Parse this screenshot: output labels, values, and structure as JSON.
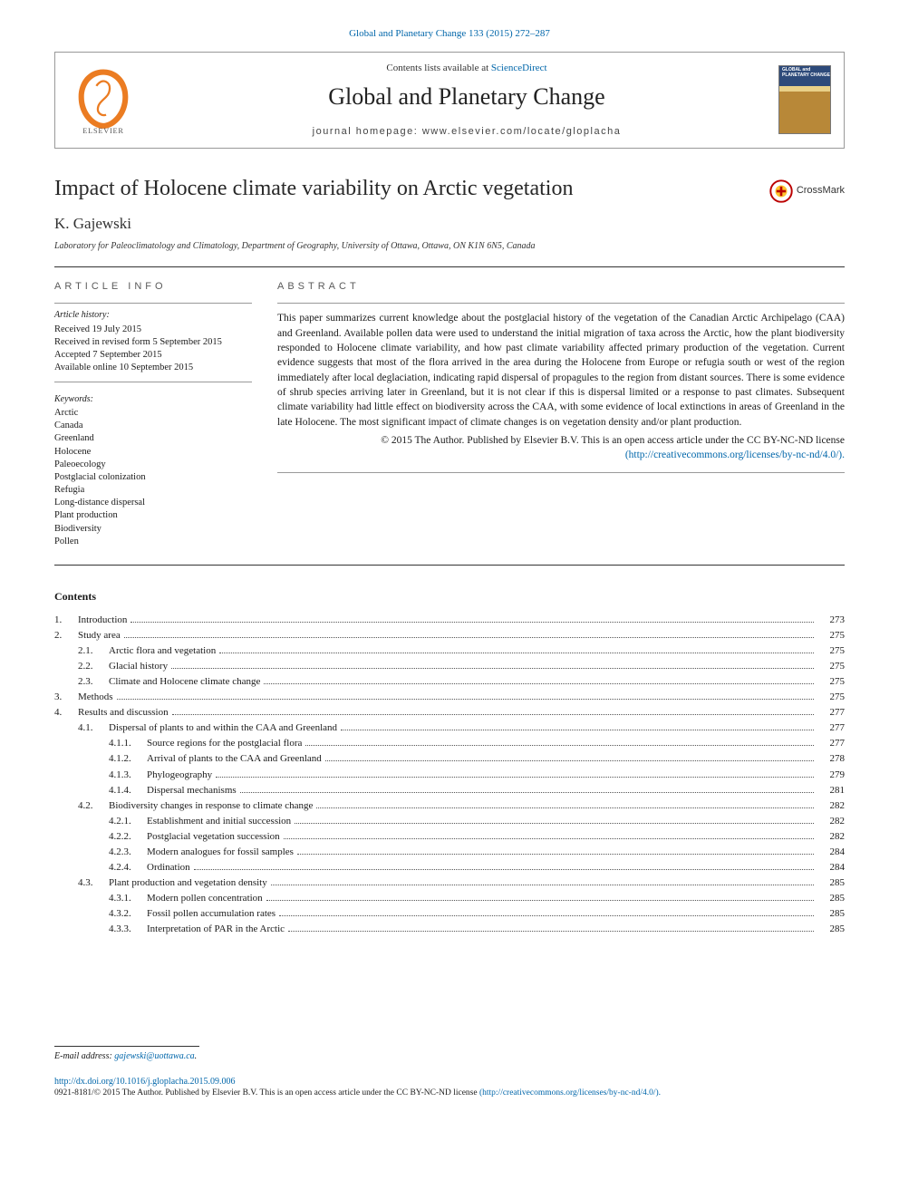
{
  "header": {
    "citation": "Global and Planetary Change 133 (2015) 272–287",
    "contents_prefix": "Contents lists available at ",
    "contents_link": "ScienceDirect",
    "journal_title": "Global and Planetary Change",
    "homepage_prefix": "journal homepage: ",
    "homepage_url": "www.elsevier.com/locate/gloplacha",
    "cover_label": "GLOBAL and PLANETARY CHANGE",
    "crossmark_label": "CrossMark"
  },
  "article": {
    "title": "Impact of Holocene climate variability on Arctic vegetation",
    "author": "K. Gajewski",
    "affiliation": "Laboratory for Paleoclimatology and Climatology, Department of Geography, University of Ottawa, Ottawa, ON K1N 6N5, Canada"
  },
  "info": {
    "section_label": "ARTICLE INFO",
    "history_label": "Article history:",
    "history": [
      "Received 19 July 2015",
      "Received in revised form 5 September 2015",
      "Accepted 7 September 2015",
      "Available online 10 September 2015"
    ],
    "keywords_label": "Keywords:",
    "keywords": [
      "Arctic",
      "Canada",
      "Greenland",
      "Holocene",
      "Paleoecology",
      "Postglacial colonization",
      "Refugia",
      "Long-distance dispersal",
      "Plant production",
      "Biodiversity",
      "Pollen"
    ]
  },
  "abstract": {
    "section_label": "ABSTRACT",
    "body": "This paper summarizes current knowledge about the postglacial history of the vegetation of the Canadian Arctic Archipelago (CAA) and Greenland. Available pollen data were used to understand the initial migration of taxa across the Arctic, how the plant biodiversity responded to Holocene climate variability, and how past climate variability affected primary production of the vegetation. Current evidence suggests that most of the flora arrived in the area during the Holocene from Europe or refugia south or west of the region immediately after local deglaciation, indicating rapid dispersal of propagules to the region from distant sources. There is some evidence of shrub species arriving later in Greenland, but it is not clear if this is dispersal limited or a response to past climates. Subsequent climate variability had little effect on biodiversity across the CAA, with some evidence of local extinctions in areas of Greenland in the late Holocene. The most significant impact of climate changes is on vegetation density and/or plant production.",
    "copyright": "© 2015 The Author. Published by Elsevier B.V. This is an open access article under the CC BY-NC-ND license",
    "license_url": "(http://creativecommons.org/licenses/by-nc-nd/4.0/)."
  },
  "contents": {
    "heading": "Contents",
    "items": [
      {
        "level": 0,
        "num": "1.",
        "label": "Introduction",
        "page": "273"
      },
      {
        "level": 0,
        "num": "2.",
        "label": "Study area",
        "page": "275"
      },
      {
        "level": 1,
        "num": "2.1.",
        "label": "Arctic flora and vegetation",
        "page": "275"
      },
      {
        "level": 1,
        "num": "2.2.",
        "label": "Glacial history",
        "page": "275"
      },
      {
        "level": 1,
        "num": "2.3.",
        "label": "Climate and Holocene climate change",
        "page": "275"
      },
      {
        "level": 0,
        "num": "3.",
        "label": "Methods",
        "page": "275"
      },
      {
        "level": 0,
        "num": "4.",
        "label": "Results and discussion",
        "page": "277"
      },
      {
        "level": 1,
        "num": "4.1.",
        "label": "Dispersal of plants to and within the CAA and Greenland",
        "page": "277"
      },
      {
        "level": 2,
        "num": "4.1.1.",
        "label": "Source regions for the postglacial flora",
        "page": "277"
      },
      {
        "level": 2,
        "num": "4.1.2.",
        "label": "Arrival of plants to the CAA and Greenland",
        "page": "278"
      },
      {
        "level": 2,
        "num": "4.1.3.",
        "label": "Phylogeography",
        "page": "279"
      },
      {
        "level": 2,
        "num": "4.1.4.",
        "label": "Dispersal mechanisms",
        "page": "281"
      },
      {
        "level": 1,
        "num": "4.2.",
        "label": "Biodiversity changes in response to climate change",
        "page": "282"
      },
      {
        "level": 2,
        "num": "4.2.1.",
        "label": "Establishment and initial succession",
        "page": "282"
      },
      {
        "level": 2,
        "num": "4.2.2.",
        "label": "Postglacial vegetation succession",
        "page": "282"
      },
      {
        "level": 2,
        "num": "4.2.3.",
        "label": "Modern analogues for fossil samples",
        "page": "284"
      },
      {
        "level": 2,
        "num": "4.2.4.",
        "label": "Ordination",
        "page": "284"
      },
      {
        "level": 1,
        "num": "4.3.",
        "label": "Plant production and vegetation density",
        "page": "285"
      },
      {
        "level": 2,
        "num": "4.3.1.",
        "label": "Modern pollen concentration",
        "page": "285"
      },
      {
        "level": 2,
        "num": "4.3.2.",
        "label": "Fossil pollen accumulation rates",
        "page": "285"
      },
      {
        "level": 2,
        "num": "4.3.3.",
        "label": "Interpretation of PAR in the Arctic",
        "page": "285"
      }
    ]
  },
  "footer": {
    "email_label": "E-mail address: ",
    "email": "gajewski@uottawa.ca",
    "doi": "http://dx.doi.org/10.1016/j.gloplacha.2015.09.006",
    "issn_line_prefix": "0921-8181/© 2015 The Author. Published by Elsevier B.V. This is an open access article under the CC BY-NC-ND license ",
    "issn_license_url": "(http://creativecommons.org/licenses/by-nc-nd/4.0/)."
  },
  "colors": {
    "link": "#0066aa",
    "text": "#1a1a1a",
    "rule": "#333333",
    "elsevier_orange": "#eb7c22"
  }
}
